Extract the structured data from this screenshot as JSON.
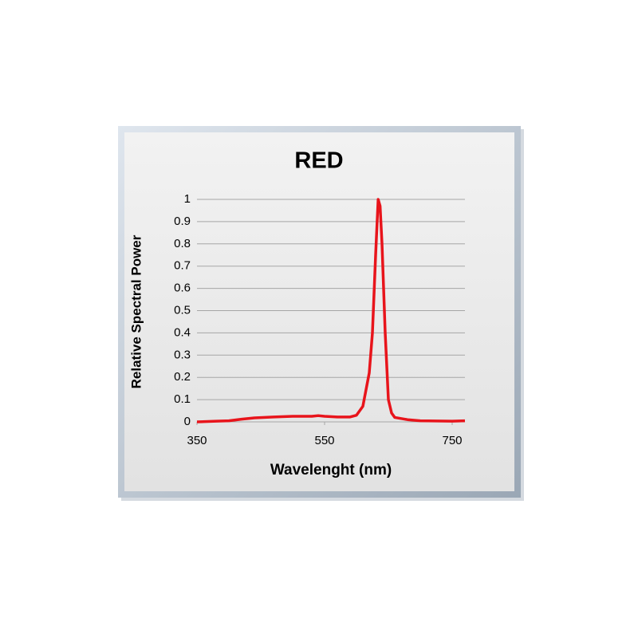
{
  "chart_data": {
    "type": "line",
    "title": "RED",
    "x_label": "Wavelenght (nm)",
    "y_label": "Relative Spectral Power",
    "x": [
      350,
      380,
      400,
      420,
      440,
      470,
      500,
      530,
      540,
      550,
      570,
      590,
      600,
      610,
      620,
      625,
      630,
      634,
      637,
      640,
      645,
      650,
      655,
      660,
      680,
      700,
      750,
      770
    ],
    "values": [
      0,
      0.003,
      0.005,
      0.012,
      0.018,
      0.022,
      0.025,
      0.025,
      0.028,
      0.025,
      0.022,
      0.022,
      0.03,
      0.07,
      0.22,
      0.4,
      0.75,
      1.0,
      0.97,
      0.8,
      0.4,
      0.1,
      0.04,
      0.02,
      0.01,
      0.005,
      0.003,
      0.005
    ],
    "color": "#e8141b",
    "xlim": [
      350,
      770
    ],
    "ylim": [
      0,
      1
    ],
    "xticks": [
      350,
      550,
      750
    ],
    "yticks": [
      0,
      0.1,
      0.2,
      0.3,
      0.4,
      0.5,
      0.6,
      0.7,
      0.8,
      0.9,
      1
    ],
    "grid": true
  }
}
